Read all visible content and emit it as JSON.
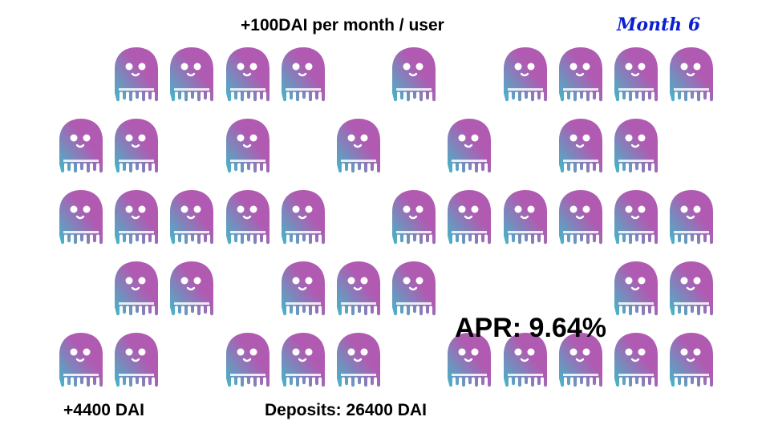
{
  "slide": {
    "title": "+100DAI per month / user",
    "month_label": "Month 6",
    "apr_text": "APR: 9.64%",
    "gain_text": "+4400 DAI",
    "deposits_text": "Deposits: 26400 DAI"
  },
  "ghost_icon": "ghost-icon",
  "colors": {
    "ghost_gradient_start": "#43b8c8",
    "ghost_gradient_end": "#b05bb1",
    "month_text": "#0b1fd1"
  },
  "ghost_grid": {
    "columns": 12,
    "rows": [
      [
        0,
        1,
        1,
        1,
        1,
        0,
        1,
        0,
        1,
        1,
        1,
        1
      ],
      [
        1,
        1,
        0,
        1,
        0,
        1,
        0,
        1,
        0,
        1,
        1,
        0
      ],
      [
        1,
        1,
        1,
        1,
        1,
        0,
        1,
        1,
        1,
        1,
        1,
        1
      ],
      [
        0,
        1,
        1,
        0,
        1,
        1,
        1,
        0,
        0,
        0,
        1,
        1
      ],
      [
        1,
        1,
        0,
        1,
        1,
        1,
        0,
        1,
        1,
        1,
        1,
        1
      ]
    ]
  }
}
